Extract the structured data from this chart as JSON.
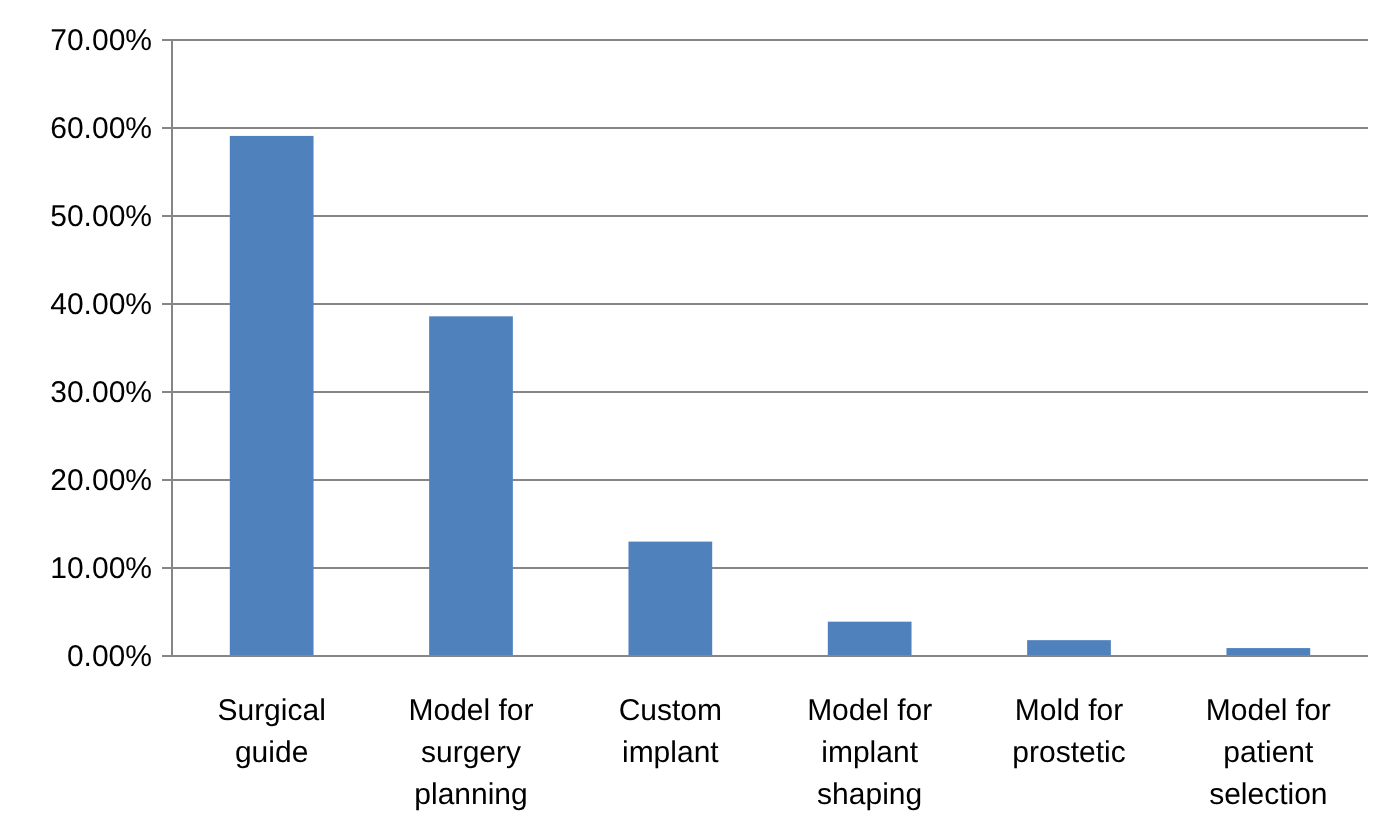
{
  "chart_data": {
    "type": "bar",
    "categories": [
      "Surgical guide",
      "Model for surgery planning",
      "Custom implant",
      "Model for implant shaping",
      "Mold for prostetic",
      "Model for patient selection"
    ],
    "values": [
      59.1,
      38.6,
      13,
      3.9,
      1.8,
      0.9
    ],
    "color": "#4f81bd",
    "ylim": [
      0,
      70
    ],
    "yticks": [
      {
        "value": 0,
        "label": "0.00%"
      },
      {
        "value": 10,
        "label": "10.00%"
      },
      {
        "value": 20,
        "label": "20.00%"
      },
      {
        "value": 30,
        "label": "30.00%"
      },
      {
        "value": 40,
        "label": "40.00%"
      },
      {
        "value": 50,
        "label": "50.00%"
      },
      {
        "value": 60,
        "label": "60.00%"
      },
      {
        "value": 70,
        "label": "70.00%"
      }
    ],
    "grid": "y"
  }
}
